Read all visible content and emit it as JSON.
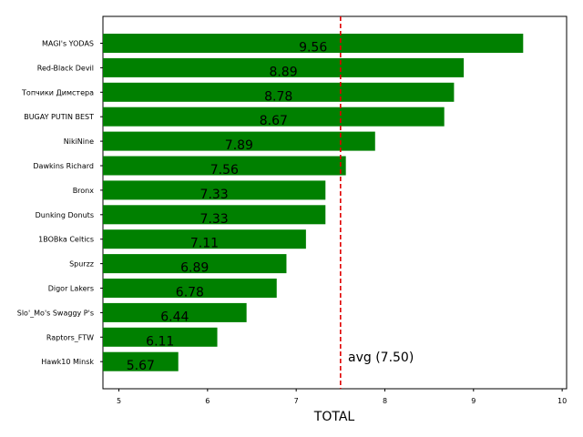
{
  "chart_data": {
    "type": "bar",
    "orientation": "horizontal",
    "categories": [
      "MAGI's YODAS",
      "Red-Black Devil",
      "Топчики Димстера",
      "BUGAY PUTIN BEST",
      "NikiNine",
      "Dawkins Richard",
      "Bronx",
      "Dunking Donuts",
      "1BOBka Celtics",
      "Spurzz",
      "Digor Lakers",
      "Slo'_Mo's Swaggy P's",
      "Raptors_FTW",
      "Hawk10 Minsk"
    ],
    "values": [
      9.56,
      8.89,
      8.78,
      8.67,
      7.89,
      7.56,
      7.33,
      7.33,
      7.11,
      6.89,
      6.78,
      6.44,
      6.11,
      5.67
    ],
    "value_labels": [
      "9.56",
      "8.89",
      "8.78",
      "8.67",
      "7.89",
      "7.56",
      "7.33",
      "7.33",
      "7.11",
      "6.89",
      "6.78",
      "6.44",
      "6.11",
      "5.67"
    ],
    "xlabel": "TOTAL",
    "xlim": [
      4.82,
      10.05
    ],
    "xticks": [
      "5",
      "6",
      "7",
      "8",
      "9",
      "10"
    ],
    "xtick_values": [
      5,
      6,
      7,
      8,
      9,
      10
    ],
    "average": 7.5,
    "average_label": "avg (7.50)",
    "bar_color": "#008000",
    "average_color": "#e00000",
    "grid": false
  }
}
